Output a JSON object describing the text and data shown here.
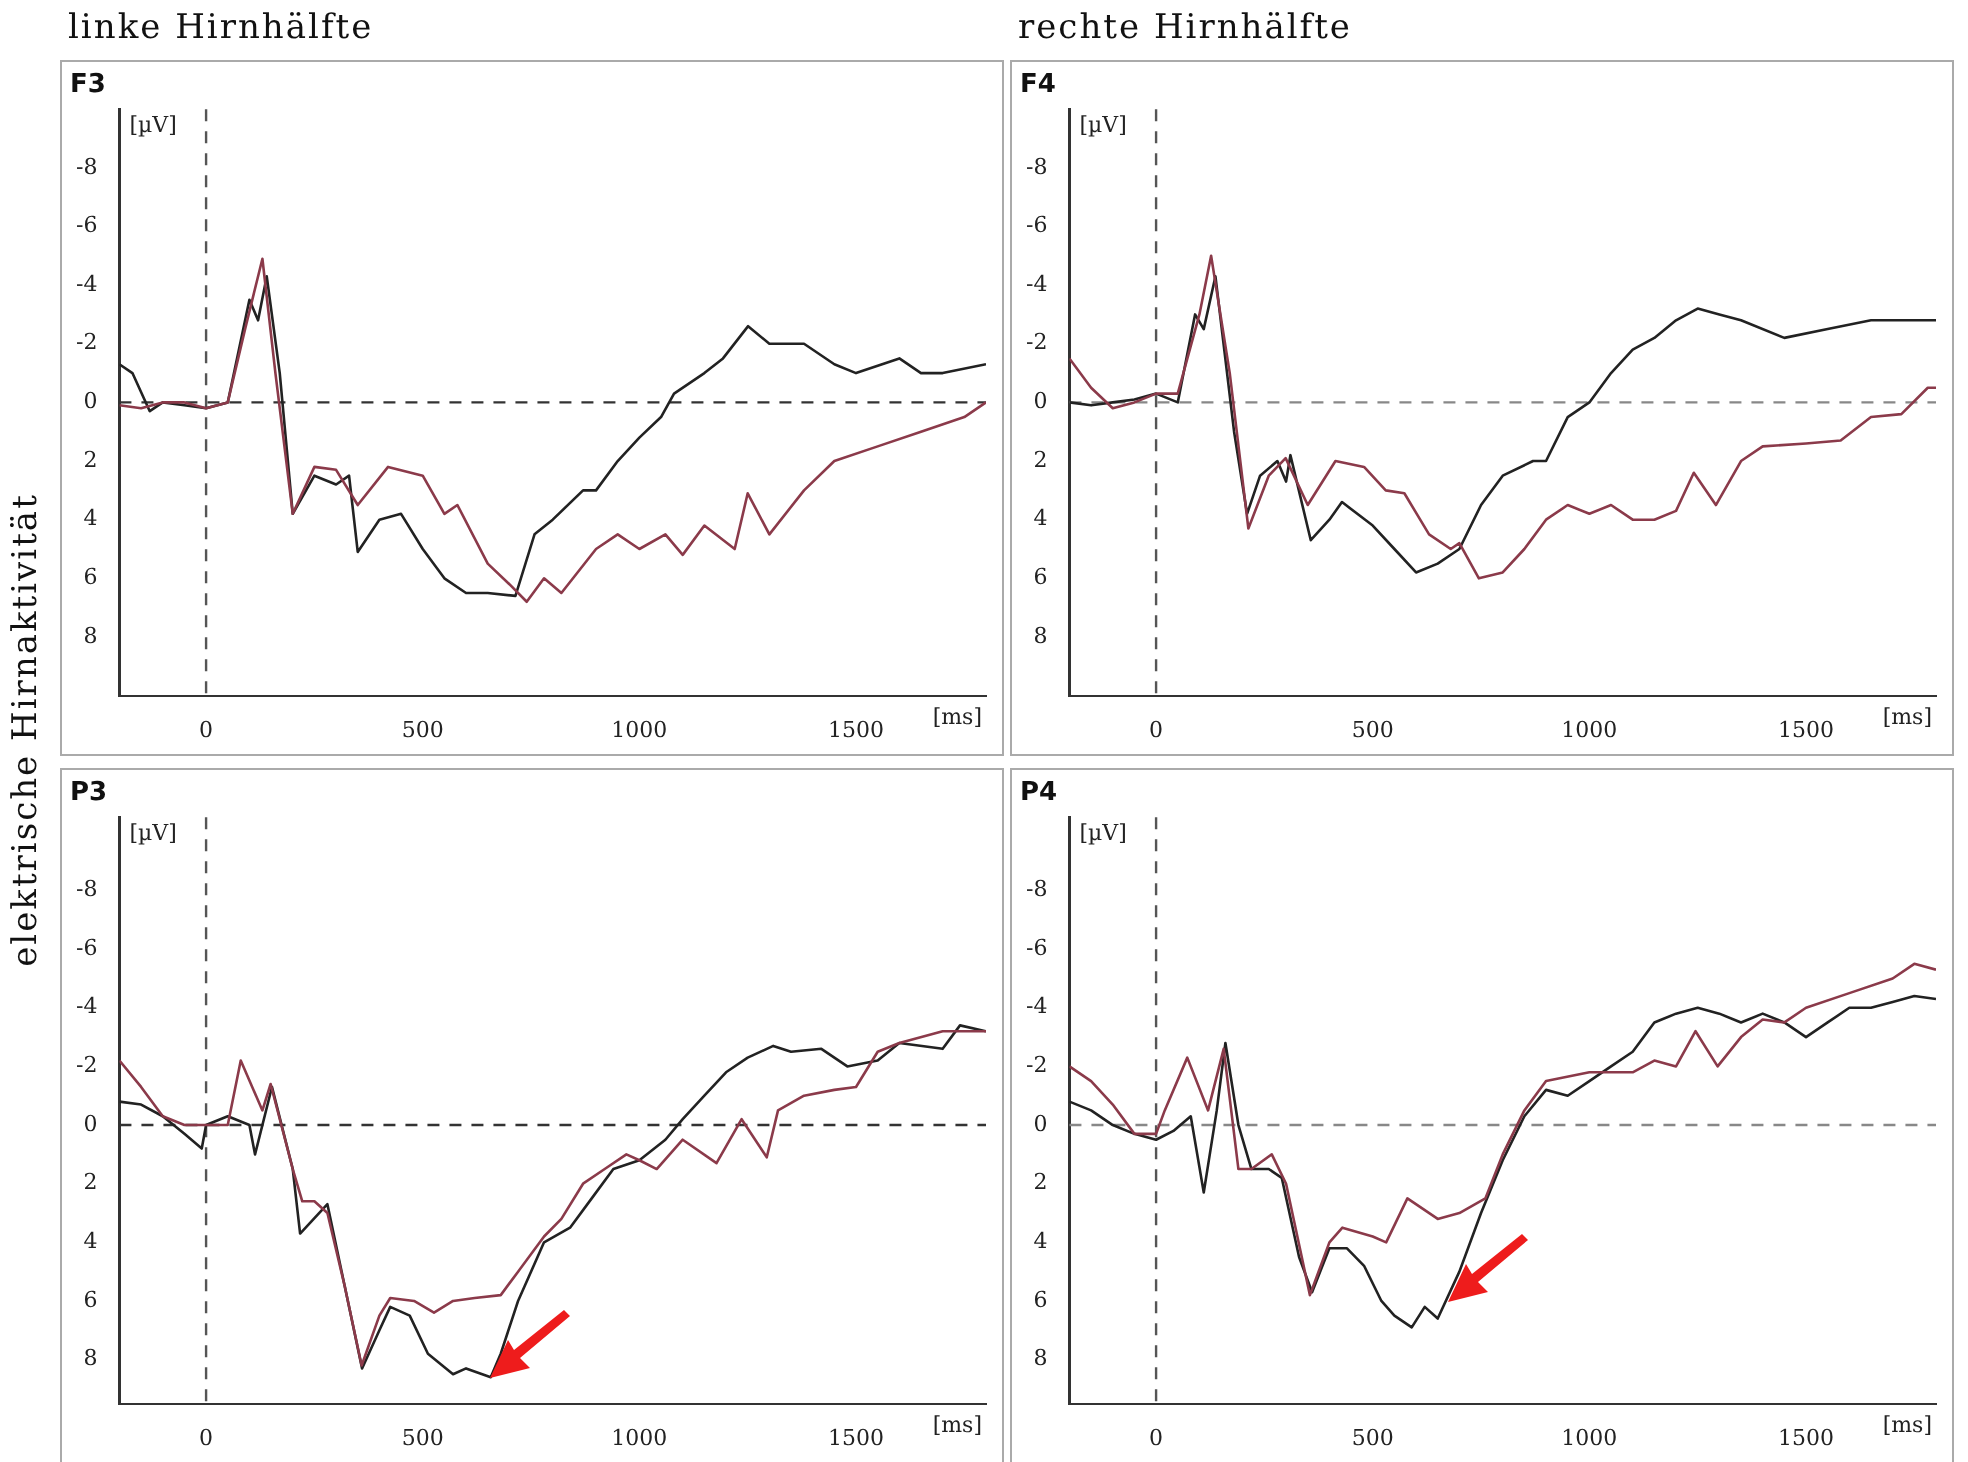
{
  "chart_data": [
    {
      "type": "line",
      "title": "F3",
      "xlabel": "[ms]",
      "ylabel": "[µV]",
      "annotations": [
        "linke Hirnhälfte",
        "elektrische Hirnaktivität"
      ],
      "xlim": [
        -200,
        1800
      ],
      "xticks": [
        0,
        500,
        1000,
        1500
      ],
      "ylim": [
        10,
        -10
      ],
      "yticks": [
        -8,
        -6,
        -4,
        -2,
        0,
        2,
        4,
        6,
        8
      ],
      "ref_lines": [
        {
          "axis": "y",
          "value": 0,
          "color": "#333333",
          "line_style": "dashed"
        },
        {
          "axis": "x",
          "value": 0,
          "color": "#555555",
          "line_style": "dashed"
        }
      ],
      "series": [
        {
          "color": "#8b3a4a",
          "x": [
            -200,
            -150,
            -100,
            -50,
            0,
            50,
            90,
            130,
            160,
            200,
            250,
            300,
            350,
            420,
            500,
            550,
            580,
            650,
            700,
            740,
            780,
            820,
            900,
            950,
            1000,
            1060,
            1100,
            1150,
            1220,
            1250,
            1300,
            1380,
            1450,
            1550,
            1650,
            1750,
            1800
          ],
          "values": [
            0.1,
            0.2,
            0,
            0,
            0.2,
            0,
            -2.5,
            -4.9,
            -1,
            3.8,
            2.2,
            2.3,
            3.5,
            2.2,
            2.5,
            3.8,
            3.5,
            5.5,
            6.2,
            6.8,
            6.0,
            6.5,
            5.0,
            4.5,
            5.0,
            4.5,
            5.2,
            4.2,
            5.0,
            3.1,
            4.5,
            3.0,
            2.0,
            1.5,
            1.0,
            0.5,
            0
          ]
        },
        {
          "color": "#222222",
          "x": [
            -200,
            -170,
            -130,
            -100,
            -50,
            0,
            50,
            100,
            120,
            140,
            170,
            200,
            250,
            300,
            330,
            350,
            400,
            450,
            500,
            550,
            600,
            650,
            714,
            758,
            800,
            870,
            900,
            950,
            1000,
            1050,
            1080,
            1150,
            1193,
            1251,
            1300,
            1380,
            1450,
            1500,
            1600,
            1650,
            1700,
            1800
          ],
          "values": [
            -1.3,
            -1.0,
            0.3,
            0,
            0.1,
            0.2,
            0,
            -3.5,
            -2.8,
            -4.3,
            -1,
            3.8,
            2.5,
            2.8,
            2.5,
            5.1,
            4.0,
            3.8,
            5.0,
            6.0,
            6.5,
            6.5,
            6.6,
            4.5,
            4.0,
            3.0,
            3.0,
            2.0,
            1.2,
            0.5,
            -0.3,
            -1.0,
            -1.5,
            -2.6,
            -2.0,
            -2.0,
            -1.3,
            -1.0,
            -1.5,
            -1.0,
            -1.0,
            -1.3
          ]
        }
      ]
    },
    {
      "type": "line",
      "title": "F4",
      "xlabel": "[ms]",
      "ylabel": "[µV]",
      "annotations": [
        "rechte Hirnhälfte"
      ],
      "xlim": [
        -200,
        1800
      ],
      "xticks": [
        0,
        500,
        1000,
        1500
      ],
      "ylim": [
        10,
        -10
      ],
      "yticks": [
        -8,
        -6,
        -4,
        -2,
        0,
        2,
        4,
        6,
        8
      ],
      "ref_lines": [
        {
          "axis": "y",
          "value": 0,
          "color": "#888888",
          "line_style": "dashed"
        },
        {
          "axis": "x",
          "value": 0,
          "color": "#555555",
          "line_style": "dashed"
        }
      ],
      "series": [
        {
          "color": "#8b3a4a",
          "x": [
            -200,
            -150,
            -100,
            -50,
            0,
            50,
            100,
            127,
            170,
            213,
            260,
            299,
            350,
            414,
            480,
            530,
            573,
            630,
            680,
            700,
            745,
            800,
            850,
            900,
            950,
            1000,
            1050,
            1100,
            1150,
            1200,
            1241,
            1292,
            1350,
            1400,
            1500,
            1580,
            1650,
            1720,
            1781,
            1800
          ],
          "values": [
            -1.5,
            -0.5,
            0.2,
            0,
            -0.3,
            -0.3,
            -3,
            -5.0,
            -1,
            4.3,
            2.5,
            1.9,
            3.5,
            2.0,
            2.2,
            3.0,
            3.1,
            4.5,
            5.0,
            4.8,
            6.0,
            5.8,
            5.0,
            4.0,
            3.5,
            3.8,
            3.5,
            4.0,
            4.0,
            3.7,
            2.4,
            3.5,
            2.0,
            1.5,
            1.4,
            1.3,
            0.5,
            0.4,
            -0.5,
            -0.5
          ]
        },
        {
          "color": "#222222",
          "x": [
            -200,
            -150,
            -100,
            -50,
            0,
            50,
            90,
            110,
            137,
            180,
            210,
            240,
            280,
            300,
            310,
            357,
            400,
            429,
            500,
            550,
            600,
            650,
            700,
            750,
            800,
            870,
            900,
            950,
            1000,
            1050,
            1100,
            1150,
            1200,
            1250,
            1300,
            1350,
            1450,
            1550,
            1650,
            1800
          ],
          "values": [
            0,
            0.1,
            0,
            -0.1,
            -0.3,
            0,
            -3.0,
            -2.5,
            -4.3,
            1.0,
            3.8,
            2.5,
            2.0,
            2.7,
            1.8,
            4.7,
            4.0,
            3.4,
            4.2,
            5.0,
            5.8,
            5.5,
            5.0,
            3.5,
            2.5,
            2.0,
            2.0,
            0.5,
            0,
            -1.0,
            -1.8,
            -2.2,
            -2.8,
            -3.2,
            -3.0,
            -2.8,
            -2.2,
            -2.5,
            -2.8,
            -2.8
          ]
        }
      ]
    },
    {
      "type": "line",
      "title": "P3",
      "xlabel": "[ms]",
      "ylabel": "[µV]",
      "xlim": [
        -200,
        1800
      ],
      "xticks": [
        0,
        500,
        1000,
        1500
      ],
      "ylim": [
        9.5,
        -10.5
      ],
      "yticks": [
        -8,
        -6,
        -4,
        -2,
        0,
        2,
        4,
        6,
        8
      ],
      "ref_lines": [
        {
          "axis": "y",
          "value": 0,
          "color": "#333333",
          "line_style": "dashed"
        },
        {
          "axis": "x",
          "value": 0,
          "color": "#555555",
          "line_style": "dashed"
        }
      ],
      "series": [
        {
          "color": "#8b3a4a",
          "x": [
            -200,
            -150,
            -100,
            -50,
            0,
            50,
            80,
            130,
            149,
            200,
            222,
            250,
            280,
            320,
            359,
            400,
            425,
            480,
            526,
            570,
            620,
            680,
            720,
            780,
            820,
            870,
            920,
            970,
            1000,
            1040,
            1100,
            1178,
            1236,
            1294,
            1320,
            1380,
            1450,
            1500,
            1550,
            1600,
            1700,
            1800
          ],
          "values": [
            -2.2,
            -1.3,
            -0.3,
            0,
            0,
            0,
            -2.2,
            -0.5,
            -1.4,
            1.5,
            2.6,
            2.6,
            3.0,
            5.5,
            8.2,
            6.5,
            5.9,
            6.0,
            6.4,
            6.0,
            5.9,
            5.8,
            5.0,
            3.8,
            3.2,
            2.0,
            1.5,
            1.0,
            1.2,
            1.5,
            0.5,
            1.3,
            -0.2,
            1.1,
            -0.5,
            -1.0,
            -1.2,
            -1.3,
            -2.5,
            -2.8,
            -3.2,
            -3.2
          ]
        },
        {
          "color": "#222222",
          "x": [
            -200,
            -150,
            -100,
            -50,
            -10,
            0,
            50,
            100,
            113,
            152,
            200,
            217,
            280,
            320,
            360,
            400,
            425,
            470,
            512,
            570,
            600,
            657,
            680,
            720,
            780,
            840,
            890,
            940,
            1000,
            1060,
            1100,
            1150,
            1200,
            1250,
            1309,
            1350,
            1420,
            1480,
            1550,
            1600,
            1700,
            1740,
            1800
          ],
          "values": [
            -0.8,
            -0.7,
            -0.3,
            0.3,
            0.8,
            0,
            -0.3,
            0,
            1.0,
            -1.3,
            1.5,
            3.7,
            2.7,
            5.5,
            8.3,
            7.0,
            6.2,
            6.5,
            7.8,
            8.5,
            8.3,
            8.6,
            7.8,
            6.0,
            4.0,
            3.5,
            2.5,
            1.5,
            1.2,
            0.5,
            -0.2,
            -1.0,
            -1.8,
            -2.3,
            -2.7,
            -2.5,
            -2.6,
            -2.0,
            -2.2,
            -2.8,
            -2.6,
            -3.4,
            -3.2
          ]
        }
      ]
    },
    {
      "type": "line",
      "title": "P4",
      "xlabel": "[ms]",
      "ylabel": "[µV]",
      "xlim": [
        -200,
        1800
      ],
      "xticks": [
        0,
        500,
        1000,
        1500
      ],
      "ylim": [
        9.5,
        -10.5
      ],
      "yticks": [
        -8,
        -6,
        -4,
        -2,
        0,
        2,
        4,
        6,
        8
      ],
      "ref_lines": [
        {
          "axis": "y",
          "value": 0,
          "color": "#888888",
          "line_style": "dashed"
        },
        {
          "axis": "x",
          "value": 0,
          "color": "#555555",
          "line_style": "dashed"
        }
      ],
      "series": [
        {
          "color": "#8b3a4a",
          "x": [
            -200,
            -150,
            -100,
            -50,
            0,
            20,
            72,
            120,
            156,
            190,
            220,
            267,
            300,
            355,
            400,
            430,
            500,
            531,
            580,
            650,
            700,
            760,
            800,
            850,
            900,
            1000,
            1100,
            1150,
            1200,
            1245,
            1296,
            1350,
            1400,
            1450,
            1500,
            1600,
            1700,
            1750,
            1800
          ],
          "values": [
            -2.0,
            -1.5,
            -0.7,
            0.3,
            0.3,
            -0.5,
            -2.3,
            -0.5,
            -2.6,
            1.5,
            1.5,
            1.0,
            2.0,
            5.8,
            4.0,
            3.5,
            3.8,
            4.0,
            2.5,
            3.2,
            3.0,
            2.5,
            1.0,
            -0.5,
            -1.5,
            -1.8,
            -1.8,
            -2.2,
            -2.0,
            -3.2,
            -2.0,
            -3.0,
            -3.6,
            -3.5,
            -4.0,
            -4.5,
            -5.0,
            -5.5,
            -5.3
          ]
        },
        {
          "color": "#222222",
          "x": [
            -200,
            -150,
            -100,
            -50,
            0,
            40,
            80,
            110,
            140,
            160,
            190,
            220,
            260,
            290,
            330,
            360,
            400,
            440,
            480,
            520,
            550,
            590,
            620,
            650,
            700,
            750,
            800,
            850,
            900,
            950,
            1000,
            1050,
            1100,
            1150,
            1200,
            1250,
            1300,
            1350,
            1400,
            1450,
            1500,
            1550,
            1600,
            1650,
            1700,
            1750,
            1800
          ],
          "values": [
            -0.8,
            -0.5,
            0,
            0.3,
            0.5,
            0.2,
            -0.3,
            2.3,
            -0.5,
            -2.8,
            0,
            1.5,
            1.5,
            1.8,
            4.5,
            5.7,
            4.2,
            4.2,
            4.8,
            6.0,
            6.5,
            6.9,
            6.2,
            6.6,
            5.0,
            3.0,
            1.2,
            -0.3,
            -1.2,
            -1.0,
            -1.5,
            -2.0,
            -2.5,
            -3.5,
            -3.8,
            -4.0,
            -3.8,
            -3.5,
            -3.8,
            -3.5,
            -3.0,
            -3.5,
            -4.0,
            -4.0,
            -4.2,
            -4.4,
            -4.3
          ]
        }
      ]
    }
  ]
}
